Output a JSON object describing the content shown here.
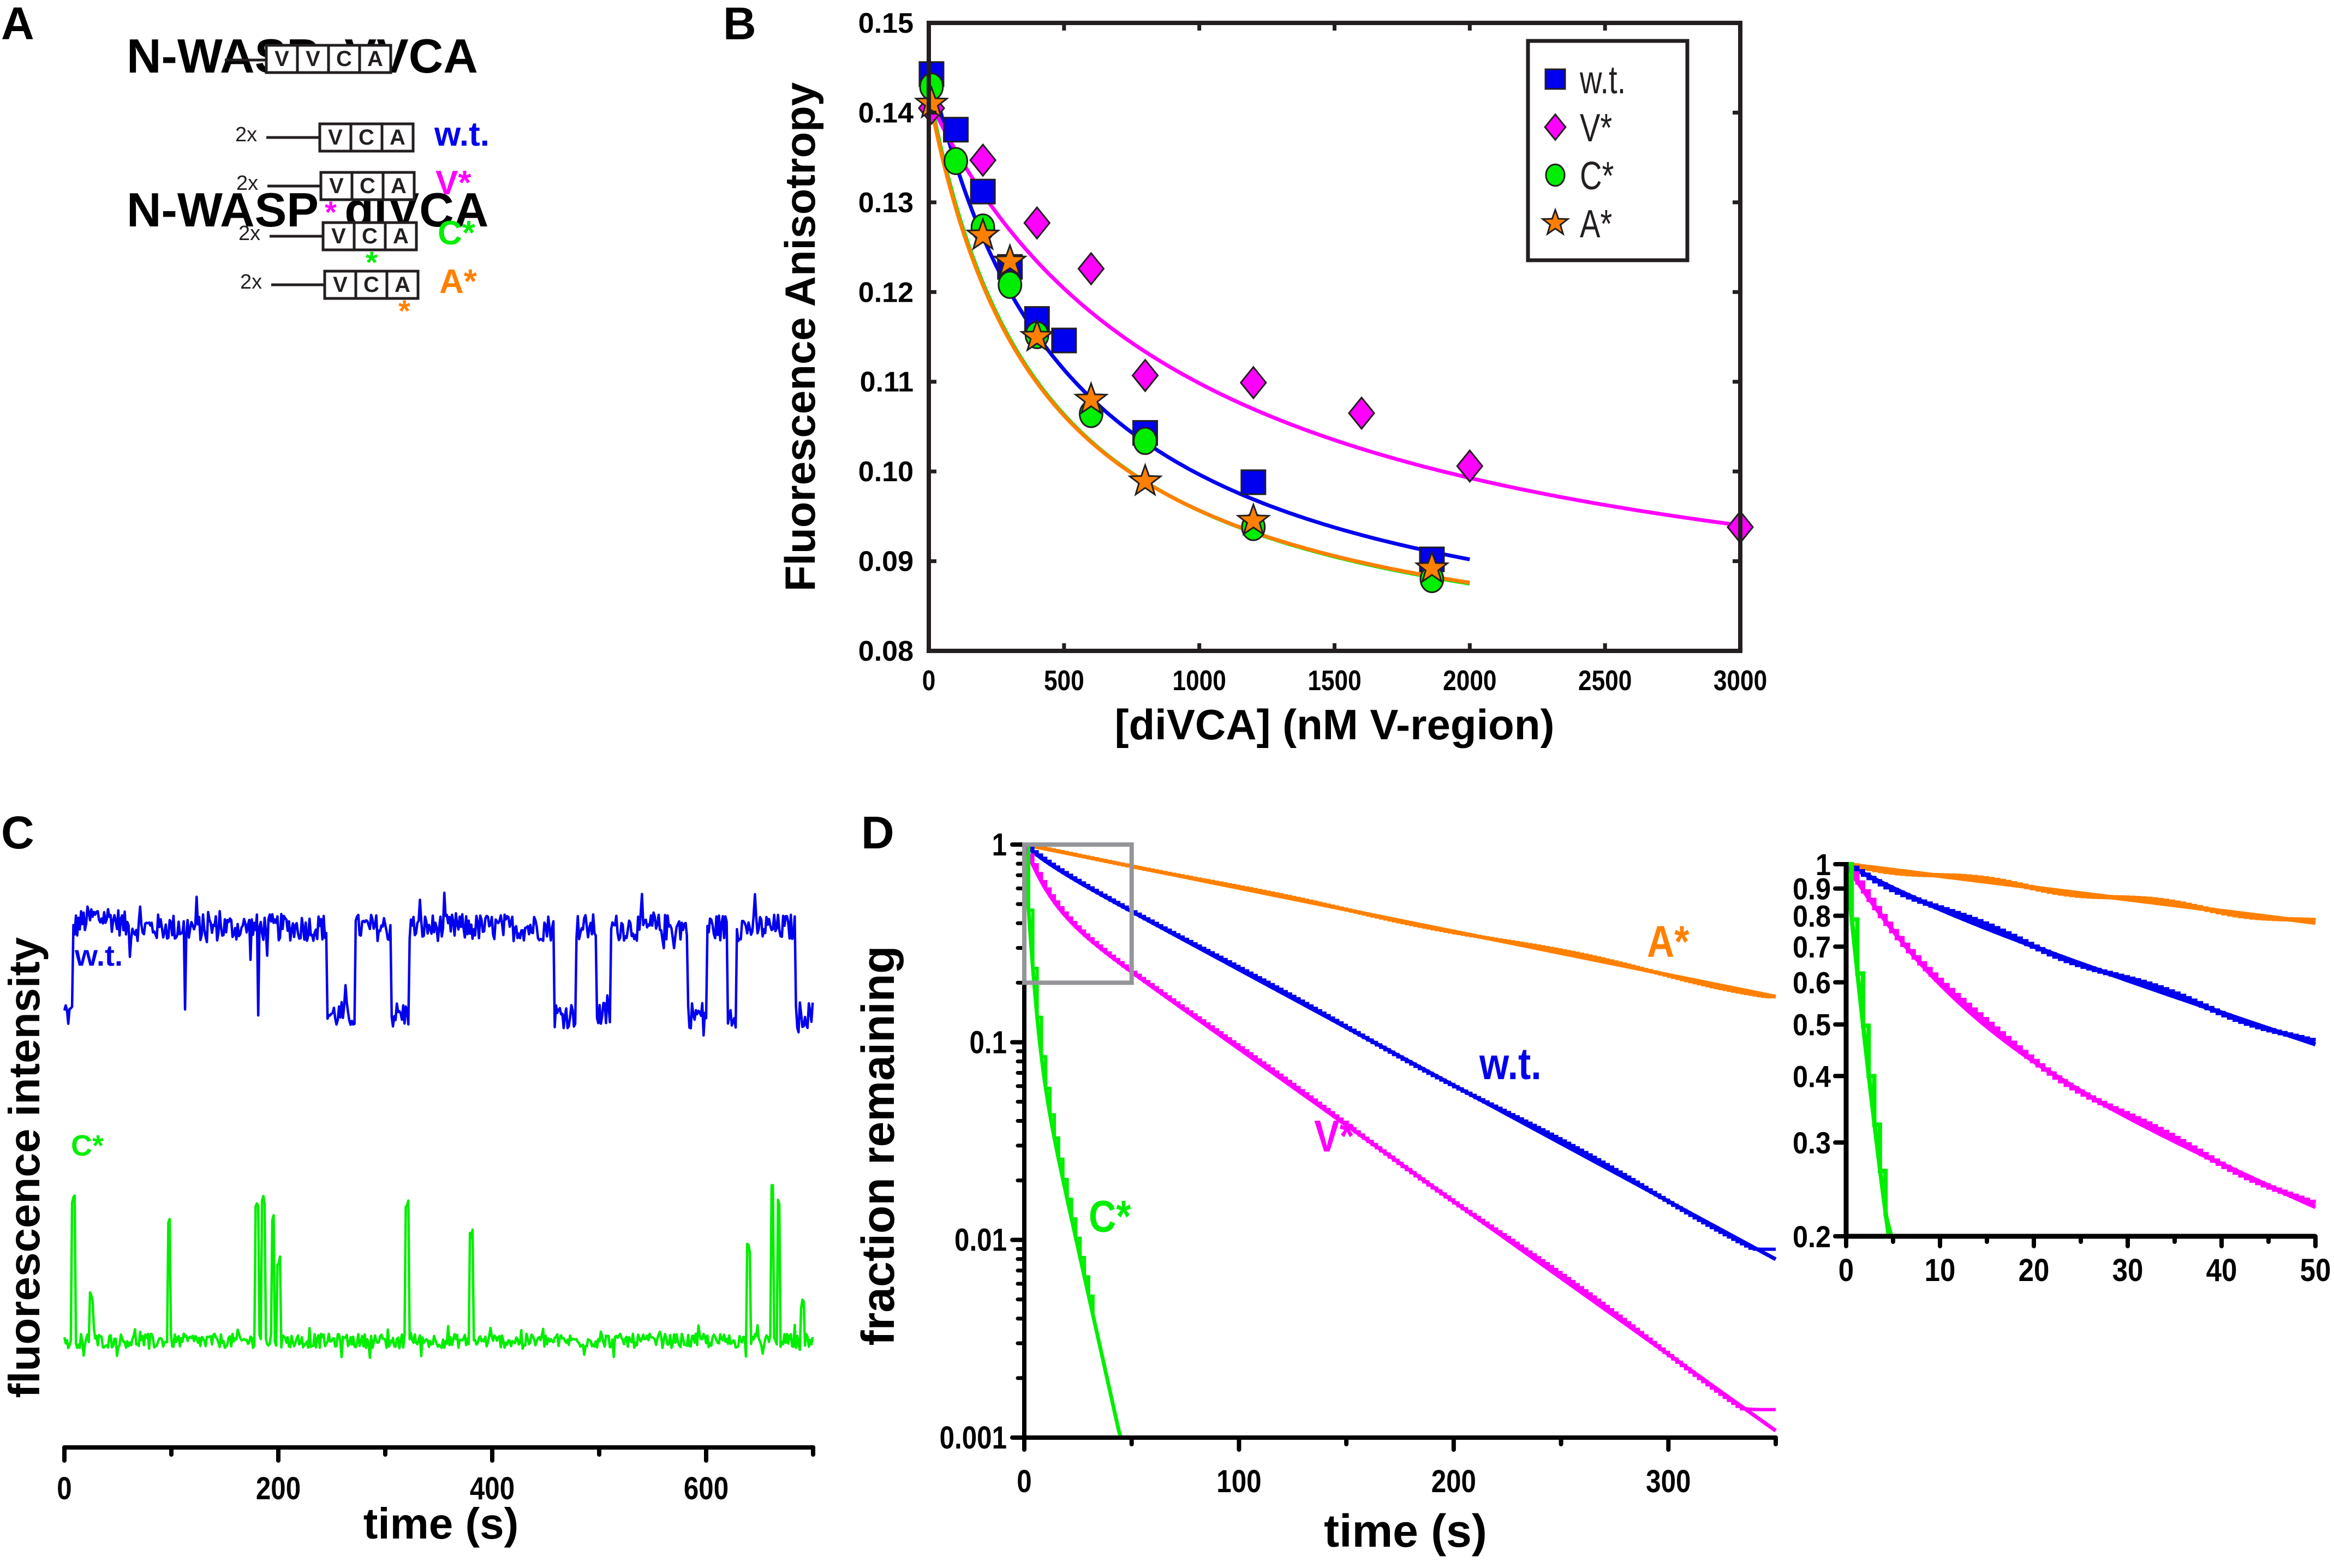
{
  "figure": {
    "panel_labels": [
      "A",
      "B",
      "C",
      "D"
    ]
  },
  "colors": {
    "wt": "#0000ee",
    "vstar": "#ff00ff",
    "cstar": "#00ee00",
    "astar": "#ff8000",
    "axis": "#231f20",
    "inset_box": "#939598"
  },
  "panel_a": {
    "title_vvca": "N-WASP  VVCA",
    "title_divca": "N-WASP  diVCA",
    "vvca_domains": [
      "V",
      "V",
      "C",
      "A"
    ],
    "divca_rows": [
      {
        "prefix": "2x",
        "domains": [
          "V",
          "C",
          "A"
        ],
        "label": "w.t.",
        "color_key": "wt",
        "mutated_domain": null
      },
      {
        "prefix": "2x",
        "domains": [
          "V",
          "C",
          "A"
        ],
        "label": "V*",
        "color_key": "vstar",
        "mutated_domain": 0
      },
      {
        "prefix": "2x",
        "domains": [
          "V",
          "C",
          "A"
        ],
        "label": "C*",
        "color_key": "cstar",
        "mutated_domain": 1
      },
      {
        "prefix": "2x",
        "domains": [
          "V",
          "C",
          "A"
        ],
        "label": "A*",
        "color_key": "astar",
        "mutated_domain": 2
      }
    ],
    "mutation_mark": "*"
  },
  "chart_data": [
    {
      "id": "B",
      "type": "scatter",
      "title": "",
      "xlabel": "[diVCA] (nM V-region)",
      "ylabel": "Fluorescence Anisotropy",
      "xlim": [
        0,
        3000
      ],
      "ylim": [
        0.08,
        0.15
      ],
      "xticks": [
        0,
        500,
        1000,
        1500,
        2000,
        2500,
        3000
      ],
      "yticks": [
        0.08,
        0.09,
        0.1,
        0.11,
        0.12,
        0.13,
        0.14,
        0.15
      ],
      "ytick_labels": [
        "0.08",
        "0.09",
        "0.10",
        "0.11",
        "0.12",
        "0.13",
        "0.14",
        "0.15"
      ],
      "grid": false,
      "legend_position": "top-right",
      "series": [
        {
          "name": "w.t.",
          "marker": "square",
          "color_key": "wt",
          "x": [
            10,
            100,
            200,
            300,
            400,
            500,
            800,
            1200,
            1860
          ],
          "y": [
            0.1443,
            0.1381,
            0.1312,
            0.1228,
            0.117,
            0.1146,
            0.1043,
            0.0988,
            0.0902
          ],
          "fit": {
            "x_end": 2000,
            "y_end": 0.0902
          }
        },
        {
          "name": "V*",
          "marker": "diamond",
          "color_key": "vstar",
          "x": [
            10,
            200,
            400,
            600,
            800,
            1200,
            1600,
            2000,
            3000
          ],
          "y": [
            0.1405,
            0.1347,
            0.1277,
            0.1226,
            0.1107,
            0.1099,
            0.1065,
            0.1006,
            0.0938
          ],
          "fit": {
            "x_end": 3000,
            "y_end": 0.094
          }
        },
        {
          "name": "C*",
          "marker": "circle",
          "color_key": "cstar",
          "x": [
            10,
            100,
            200,
            300,
            400,
            600,
            800,
            1200,
            1860
          ],
          "y": [
            0.1429,
            0.1346,
            0.1272,
            0.1208,
            0.1152,
            0.1064,
            0.1034,
            0.0938,
            0.088
          ],
          "fit": {
            "x_end": 2000,
            "y_end": 0.0875
          }
        },
        {
          "name": "A*",
          "marker": "star",
          "color_key": "astar",
          "x": [
            10,
            200,
            300,
            400,
            600,
            800,
            1200,
            1860
          ],
          "y": [
            0.141,
            0.1263,
            0.1234,
            0.115,
            0.108,
            0.0989,
            0.0945,
            0.0892
          ],
          "fit": {
            "x_end": 2000,
            "y_end": 0.0876
          }
        }
      ]
    },
    {
      "id": "C",
      "type": "line",
      "title": "",
      "xlabel": "time (s)",
      "ylabel": "fluorescence intensity",
      "xlim": [
        0,
        700
      ],
      "xticks": [
        0,
        200,
        400,
        600
      ],
      "minor_xticks": [
        100,
        300,
        500,
        700
      ],
      "grid": false,
      "series": [
        {
          "name": "w.t.",
          "color_key": "wt",
          "baseline": 0.3,
          "high": 0.62,
          "noise": 0.05,
          "low_intervals": [
            [
              0,
              8
            ],
            [
              112,
              114
            ],
            [
              180,
              182
            ],
            [
              245,
              272
            ],
            [
              305,
              322
            ],
            [
              458,
              478
            ],
            [
              497,
              510
            ],
            [
              583,
              600
            ],
            [
              620,
              628
            ],
            [
              684,
              700
            ]
          ]
        },
        {
          "name": "C*",
          "color_key": "cstar",
          "baseline": 0.12,
          "noise": 0.025,
          "spikes": [
            [
              8,
              0.62
            ],
            [
              25,
              0.28
            ],
            [
              98,
              0.55
            ],
            [
              180,
              0.6
            ],
            [
              186,
              0.62
            ],
            [
              195,
              0.55
            ],
            [
              200,
              0.4
            ],
            [
              320,
              0.6
            ],
            [
              380,
              0.5
            ],
            [
              640,
              0.45
            ],
            [
              662,
              0.65
            ],
            [
              668,
              0.6
            ],
            [
              690,
              0.25
            ]
          ]
        }
      ]
    },
    {
      "id": "D",
      "type": "line",
      "title": "",
      "xlabel": "time (s)",
      "ylabel": "fraction remaining",
      "xlim": [
        0,
        350
      ],
      "ylim": [
        0.001,
        1
      ],
      "yscale": "log",
      "xticks": [
        0,
        100,
        200,
        300
      ],
      "yticks": [
        0.001,
        0.01,
        0.1,
        1
      ],
      "ytick_labels": [
        "0.001",
        "0.01",
        "0.1",
        "1"
      ],
      "grid": false,
      "annotations": [
        {
          "text": "A*",
          "color_key": "astar",
          "x": 290,
          "y": 0.27
        },
        {
          "text": "w.t.",
          "color_key": "wt",
          "x": 212,
          "y": 0.065
        },
        {
          "text": "V*",
          "color_key": "vstar",
          "x": 135,
          "y": 0.028
        },
        {
          "text": "C*",
          "color_key": "cstar",
          "x": 30,
          "y": 0.011
        }
      ],
      "zoom_box": {
        "x": [
          0,
          50
        ],
        "y": [
          0.2,
          1
        ]
      },
      "series": [
        {
          "name": "A*",
          "color_key": "astar",
          "fit": {
            "terms": [
              [
                1.0,
                0.00506
              ]
            ]
          },
          "data_end_y": 0.17
        },
        {
          "name": "w.t.",
          "color_key": "wt",
          "fit": {
            "terms": [
              [
                0.9,
                0.0135
              ],
              [
                0.1,
                0.1
              ]
            ]
          },
          "data_end_y": 0.009
        },
        {
          "name": "V*",
          "color_key": "vstar",
          "fit": {
            "terms": [
              [
                0.55,
                0.0178
              ],
              [
                0.45,
                0.12
              ]
            ]
          },
          "data_end_y": 0.0014
        },
        {
          "name": "C*",
          "color_key": "cstar",
          "fit": {
            "terms": [
              [
                0.85,
                0.45
              ],
              [
                0.15,
                0.112
              ]
            ]
          },
          "data_end_x": 33
        }
      ]
    },
    {
      "id": "D-inset",
      "type": "line",
      "xlim": [
        0,
        50
      ],
      "ylim": [
        0.2,
        1
      ],
      "yscale": "log",
      "xticks": [
        0,
        10,
        20,
        30,
        40,
        50
      ],
      "minor_xticks": [
        5,
        15,
        25,
        35,
        45
      ],
      "yticks": [
        0.2,
        0.3,
        0.4,
        0.5,
        0.6,
        0.7,
        0.8,
        0.9,
        1
      ],
      "ytick_labels": [
        "0.2",
        "0.3",
        "0.4",
        "0.5",
        "0.6",
        "0.7",
        "0.8",
        "0.9",
        "1"
      ],
      "grid": false
    }
  ]
}
